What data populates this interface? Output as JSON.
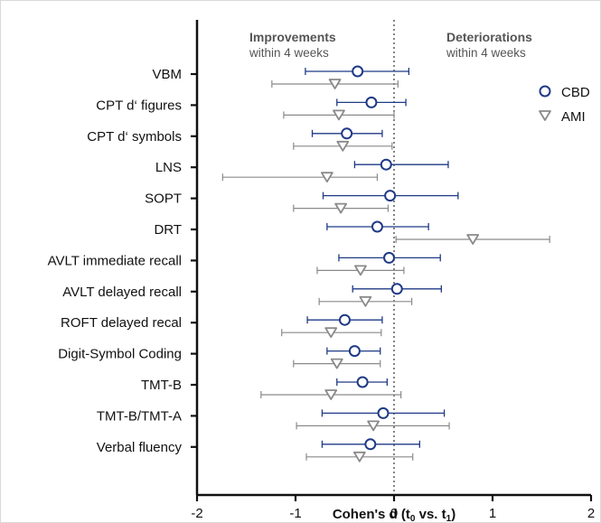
{
  "chart_data": {
    "type": "forest",
    "xlabel_main": "Cohen's d (t",
    "xlabel_sub0": "0",
    "xlabel_mid": " vs. t",
    "xlabel_sub1": "1",
    "xlabel_end": ")",
    "xlim": [
      -2,
      2
    ],
    "xticks": [
      "-2",
      "-1",
      "0",
      "1",
      "2"
    ],
    "annotations": {
      "left_title": "Improvements",
      "left_sub": "within 4 weeks",
      "right_title": "Deteriorations",
      "right_sub": "within 4 weeks"
    },
    "legend_position": "top-right",
    "categories": [
      "VBM",
      "CPT  d‘ figures",
      "CPT  d‘ symbols",
      "LNS",
      "SOPT",
      "DRT",
      "AVLT immediate recall",
      "AVLT delayed recall",
      "ROFT delayed recal",
      "Digit-Symbol Coding",
      "TMT-B",
      "TMT-B/TMT-A",
      "Verbal fluency"
    ],
    "series": [
      {
        "name": "CBD",
        "marker": "circle",
        "color": "#1f3a86",
        "points": [
          {
            "d": -0.37,
            "lo": -0.9,
            "hi": 0.15
          },
          {
            "d": -0.23,
            "lo": -0.58,
            "hi": 0.12
          },
          {
            "d": -0.48,
            "lo": -0.83,
            "hi": -0.12
          },
          {
            "d": -0.08,
            "lo": -0.4,
            "hi": 0.55
          },
          {
            "d": -0.04,
            "lo": -0.72,
            "hi": 0.65
          },
          {
            "d": -0.17,
            "lo": -0.68,
            "hi": 0.35
          },
          {
            "d": -0.05,
            "lo": -0.56,
            "hi": 0.47
          },
          {
            "d": 0.03,
            "lo": -0.42,
            "hi": 0.48
          },
          {
            "d": -0.5,
            "lo": -0.88,
            "hi": -0.12
          },
          {
            "d": -0.4,
            "lo": -0.68,
            "hi": -0.14
          },
          {
            "d": -0.32,
            "lo": -0.58,
            "hi": -0.07
          },
          {
            "d": -0.11,
            "lo": -0.73,
            "hi": 0.51
          },
          {
            "d": -0.24,
            "lo": -0.73,
            "hi": 0.26
          }
        ]
      },
      {
        "name": "AMI",
        "marker": "triangle-down",
        "color": "#8a8a8a",
        "points": [
          {
            "d": -0.6,
            "lo": -1.24,
            "hi": 0.04
          },
          {
            "d": -0.56,
            "lo": -1.12,
            "hi": 0.0
          },
          {
            "d": -0.52,
            "lo": -1.02,
            "hi": -0.02
          },
          {
            "d": -0.68,
            "lo": -1.74,
            "hi": -0.17
          },
          {
            "d": -0.54,
            "lo": -1.02,
            "hi": -0.06
          },
          {
            "d": 0.8,
            "lo": 0.02,
            "hi": 1.58
          },
          {
            "d": -0.34,
            "lo": -0.78,
            "hi": 0.1
          },
          {
            "d": -0.29,
            "lo": -0.76,
            "hi": 0.18
          },
          {
            "d": -0.64,
            "lo": -1.14,
            "hi": -0.13
          },
          {
            "d": -0.58,
            "lo": -1.02,
            "hi": -0.14
          },
          {
            "d": -0.64,
            "lo": -1.35,
            "hi": 0.07
          },
          {
            "d": -0.21,
            "lo": -0.99,
            "hi": 0.56
          },
          {
            "d": -0.35,
            "lo": -0.89,
            "hi": 0.19
          }
        ]
      }
    ]
  }
}
